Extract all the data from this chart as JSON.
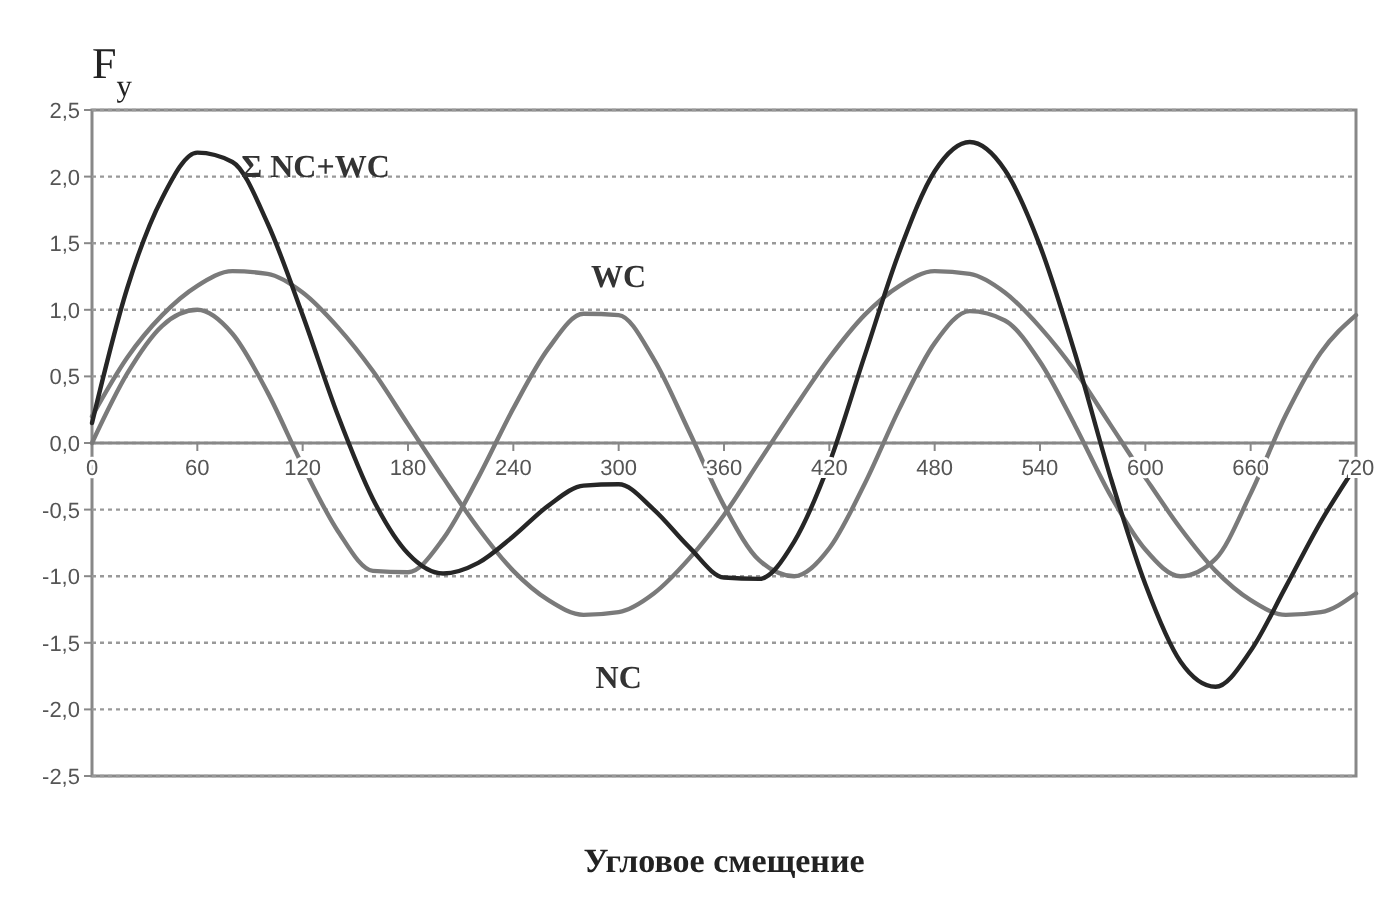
{
  "chart_data": {
    "type": "line",
    "xlabel": "Угловое смещение",
    "ylabel": "F$_{y}$",
    "x": [
      0,
      20,
      40,
      60,
      80,
      100,
      120,
      140,
      160,
      180,
      200,
      220,
      240,
      260,
      280,
      300,
      320,
      340,
      360,
      380,
      400,
      420,
      440,
      460,
      480,
      500,
      520,
      540,
      560,
      580,
      600,
      620,
      640,
      660,
      680,
      700,
      720
    ],
    "series": [
      {
        "name": "NC",
        "color": "#7a7a7a",
        "values": [
          0.2,
          0.64,
          0.96,
          1.18,
          1.29,
          1.27,
          1.13,
          0.87,
          0.54,
          0.14,
          -0.26,
          -0.64,
          -0.96,
          -1.18,
          -1.29,
          -1.27,
          -1.13,
          -0.87,
          -0.54,
          -0.14,
          0.26,
          0.64,
          0.96,
          1.18,
          1.29,
          1.27,
          1.13,
          0.87,
          0.54,
          0.14,
          -0.26,
          -0.64,
          -0.96,
          -1.18,
          -1.29,
          -1.27,
          -1.13
        ]
      },
      {
        "name": "WC",
        "color": "#7a7a7a",
        "values": [
          0,
          0.52,
          0.88,
          1.0,
          0.82,
          0.38,
          -0.17,
          -0.66,
          -0.96,
          -0.97,
          -0.72,
          -0.26,
          0.26,
          0.71,
          0.97,
          0.96,
          0.63,
          0.09,
          -0.47,
          -0.88,
          -1.0,
          -0.79,
          -0.31,
          0.26,
          0.75,
          0.99,
          0.92,
          0.61,
          0.13,
          -0.39,
          -0.8,
          -1.0,
          -0.87,
          -0.38,
          0.21,
          0.68,
          0.96
        ]
      },
      {
        "name": "Σ NC+WC",
        "color": "#262626",
        "values": [
          0.15,
          1.16,
          1.84,
          2.18,
          2.11,
          1.65,
          0.96,
          0.21,
          -0.42,
          -0.83,
          -0.98,
          -0.9,
          -0.7,
          -0.47,
          -0.32,
          -0.31,
          -0.5,
          -0.78,
          -1.01,
          -1.02,
          -0.74,
          -0.15,
          0.65,
          1.44,
          2.04,
          2.26,
          2.05,
          1.48,
          0.67,
          -0.25,
          -1.06,
          -1.64,
          -1.83,
          -1.56,
          -1.08,
          -0.59,
          -0.17
        ]
      }
    ],
    "xlim": [
      0,
      720
    ],
    "xticks": [
      0,
      60,
      120,
      180,
      240,
      300,
      360,
      420,
      480,
      540,
      600,
      660,
      720
    ],
    "ylim": [
      -2.5,
      2.5
    ],
    "yticks": [
      {
        "value": -2.5,
        "label": "-2,5"
      },
      {
        "value": -2,
        "label": "-2,0"
      },
      {
        "value": -1.5,
        "label": "-1,5"
      },
      {
        "value": -1,
        "label": "-1,0"
      },
      {
        "value": -0.5,
        "label": "-0,5"
      },
      {
        "value": 0,
        "label": "0,0"
      },
      {
        "value": 0.5,
        "label": "0,5"
      },
      {
        "value": 1,
        "label": "1,0"
      },
      {
        "value": 1.5,
        "label": "1,5"
      },
      {
        "value": 2,
        "label": "2,0"
      },
      {
        "value": 2.5,
        "label": "2,5"
      }
    ],
    "grid": "y",
    "marker": "none",
    "line_style": "solid"
  }
}
